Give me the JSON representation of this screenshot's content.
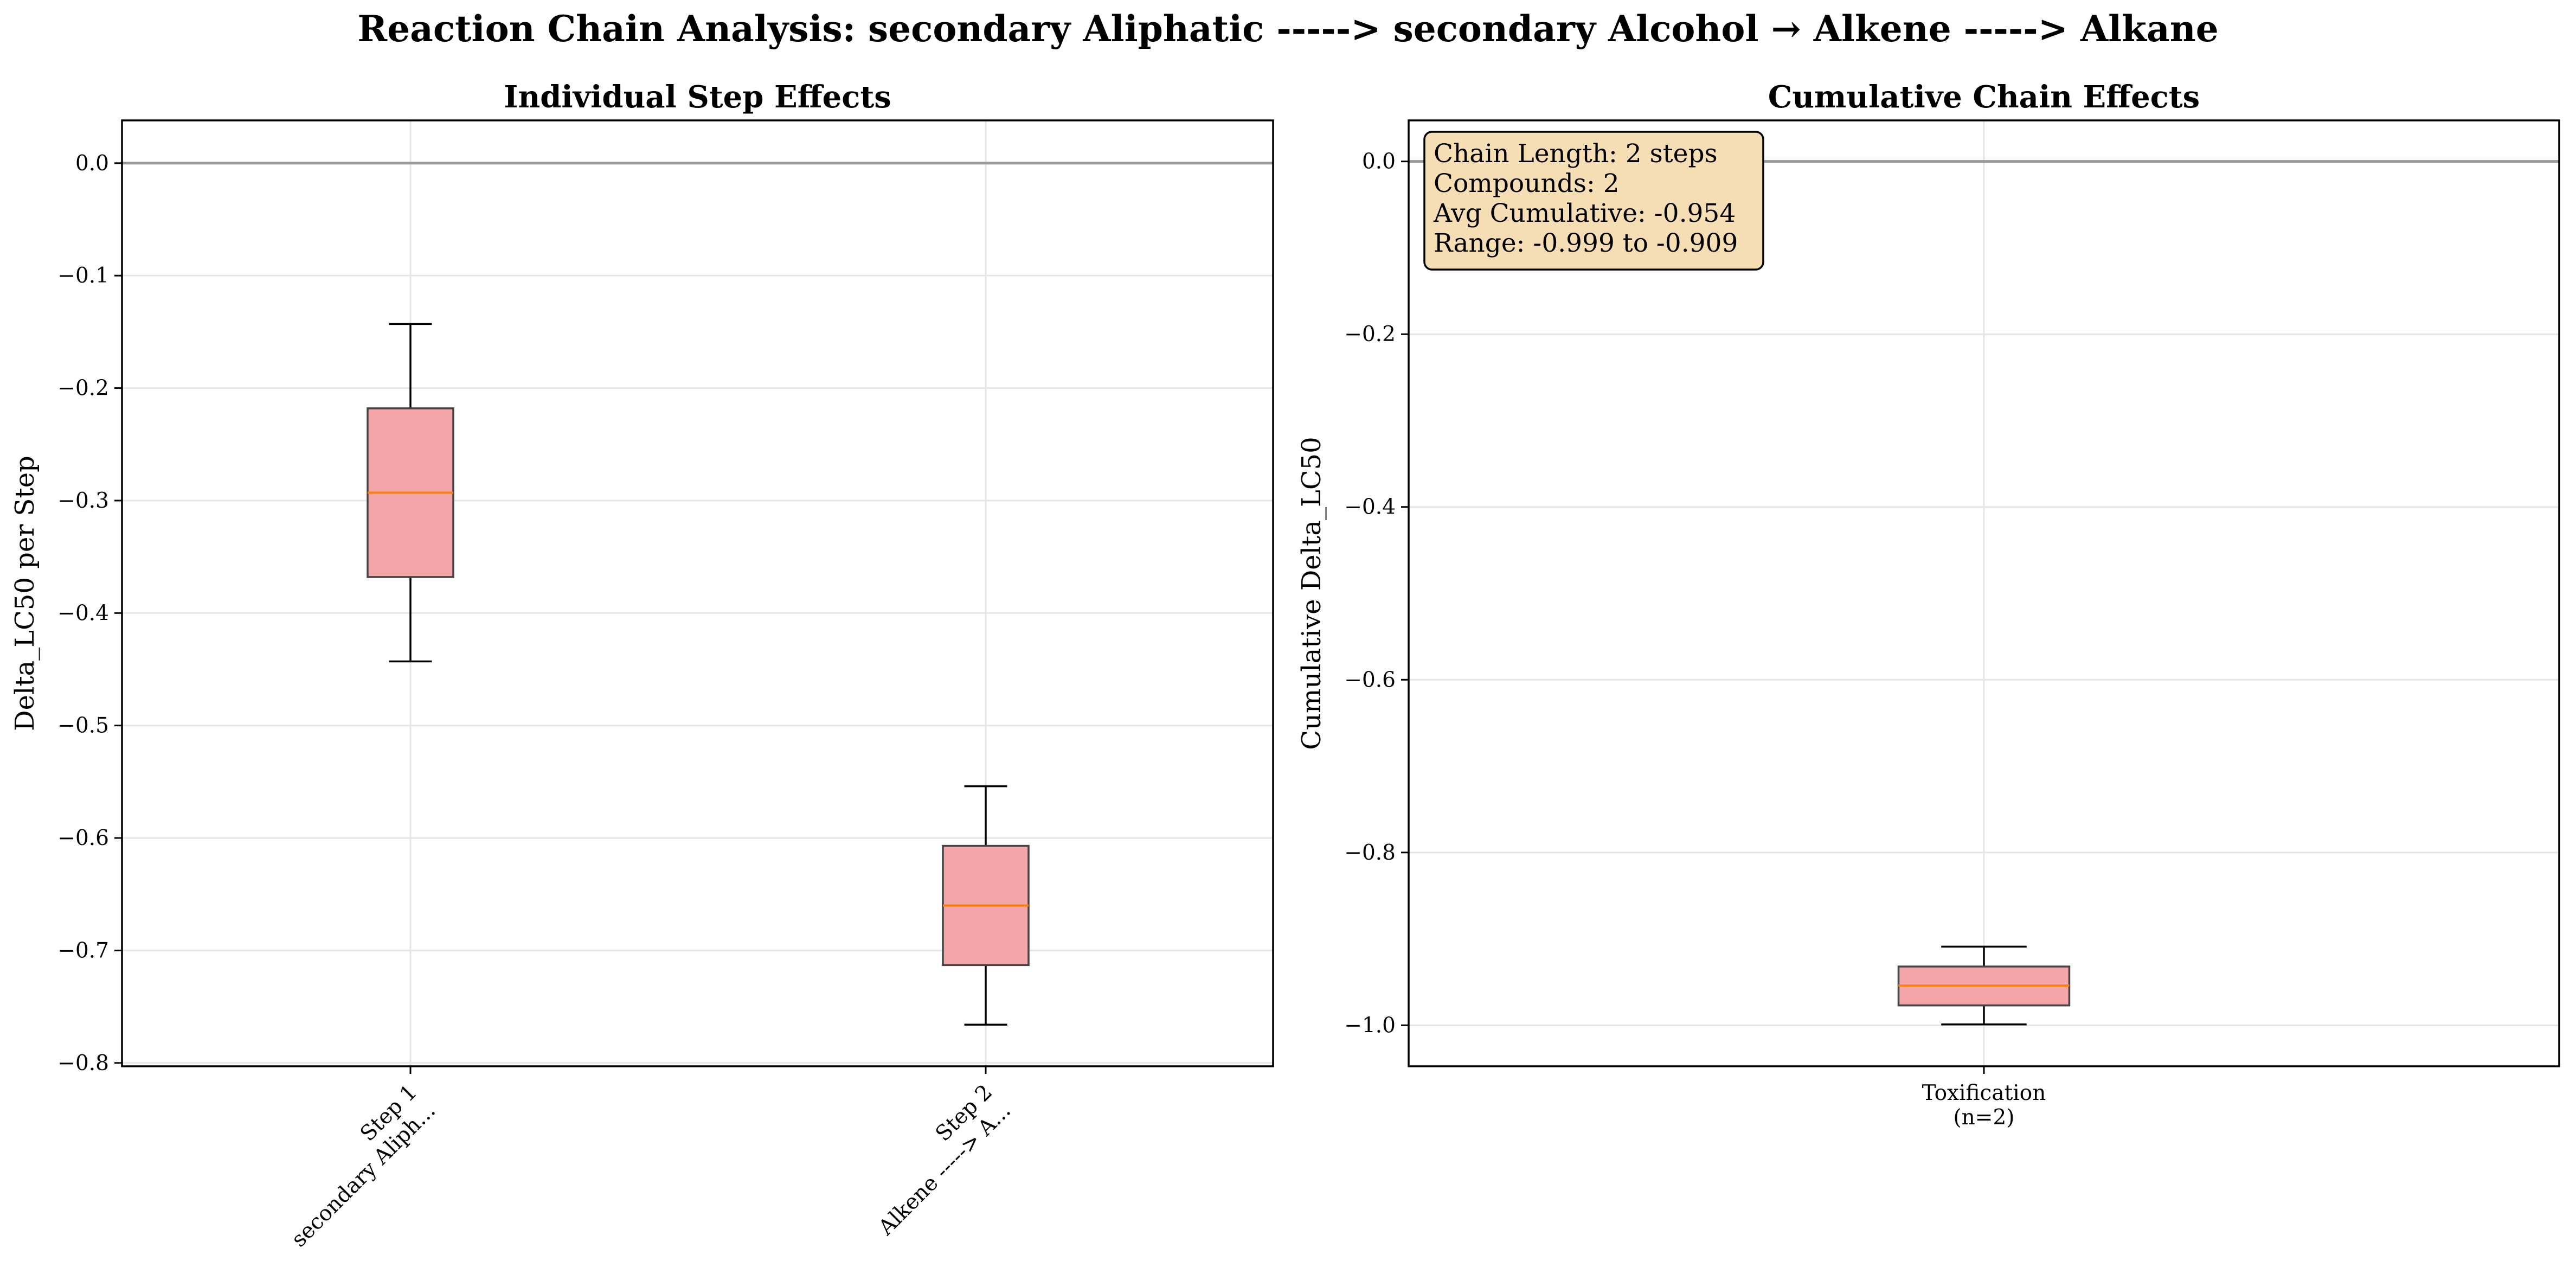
{
  "figure": {
    "suptitle": "Reaction Chain Analysis: secondary Aliphatic -----> secondary Alcohol → Alkene -----> Alkane"
  },
  "chart_data": [
    {
      "type": "box",
      "title": "Individual Step Effects",
      "xlabel": "",
      "ylabel": "Delta_LC50 per Step",
      "ylim": [
        -0.803,
        0.038
      ],
      "yticks": [
        0.0,
        -0.1,
        -0.2,
        -0.3,
        -0.4,
        -0.5,
        -0.6,
        -0.7,
        -0.8
      ],
      "ytick_labels": [
        "0.0",
        "−0.1",
        "−0.2",
        "−0.3",
        "−0.4",
        "−0.5",
        "−0.6",
        "−0.7",
        "−0.8"
      ],
      "grid": true,
      "reference_line": 0.0,
      "categories": [
        [
          "Step 1",
          "secondary Aliph..."
        ],
        [
          "Step 2",
          "Alkene -----> A..."
        ]
      ],
      "boxes": [
        {
          "whisker_low": -0.443,
          "q1": -0.368,
          "median": -0.293,
          "q3": -0.218,
          "whisker_high": -0.143
        },
        {
          "whisker_low": -0.766,
          "q1": -0.713,
          "median": -0.66,
          "q3": -0.607,
          "whisker_high": -0.554
        }
      ]
    },
    {
      "type": "box",
      "title": "Cumulative Chain Effects",
      "xlabel": "",
      "ylabel": "Cumulative Delta_LC50",
      "ylim": [
        -1.0475,
        0.0475
      ],
      "yticks": [
        0.0,
        -0.2,
        -0.4,
        -0.6,
        -0.8,
        -1.0
      ],
      "ytick_labels": [
        "0.0",
        "−0.2",
        "−0.4",
        "−0.6",
        "−0.8",
        "−1.0"
      ],
      "grid": true,
      "reference_line": 0.0,
      "categories": [
        [
          "Toxification",
          "(n=2)"
        ]
      ],
      "boxes": [
        {
          "whisker_low": -0.999,
          "q1": -0.977,
          "median": -0.954,
          "q3": -0.932,
          "whisker_high": -0.909
        }
      ],
      "annotation": [
        "Chain Length: 2 steps",
        "Compounds: 2",
        "Avg Cumulative: -0.954",
        "Range: -0.999 to -0.909"
      ]
    }
  ],
  "colors": {
    "box_fill": "#f4a5a7",
    "box_edge": "#444444",
    "median": "#ff7f0e",
    "grid": "#e5e5e5",
    "zero_line": "#999999",
    "annotation_fill": "#f5deb3"
  }
}
